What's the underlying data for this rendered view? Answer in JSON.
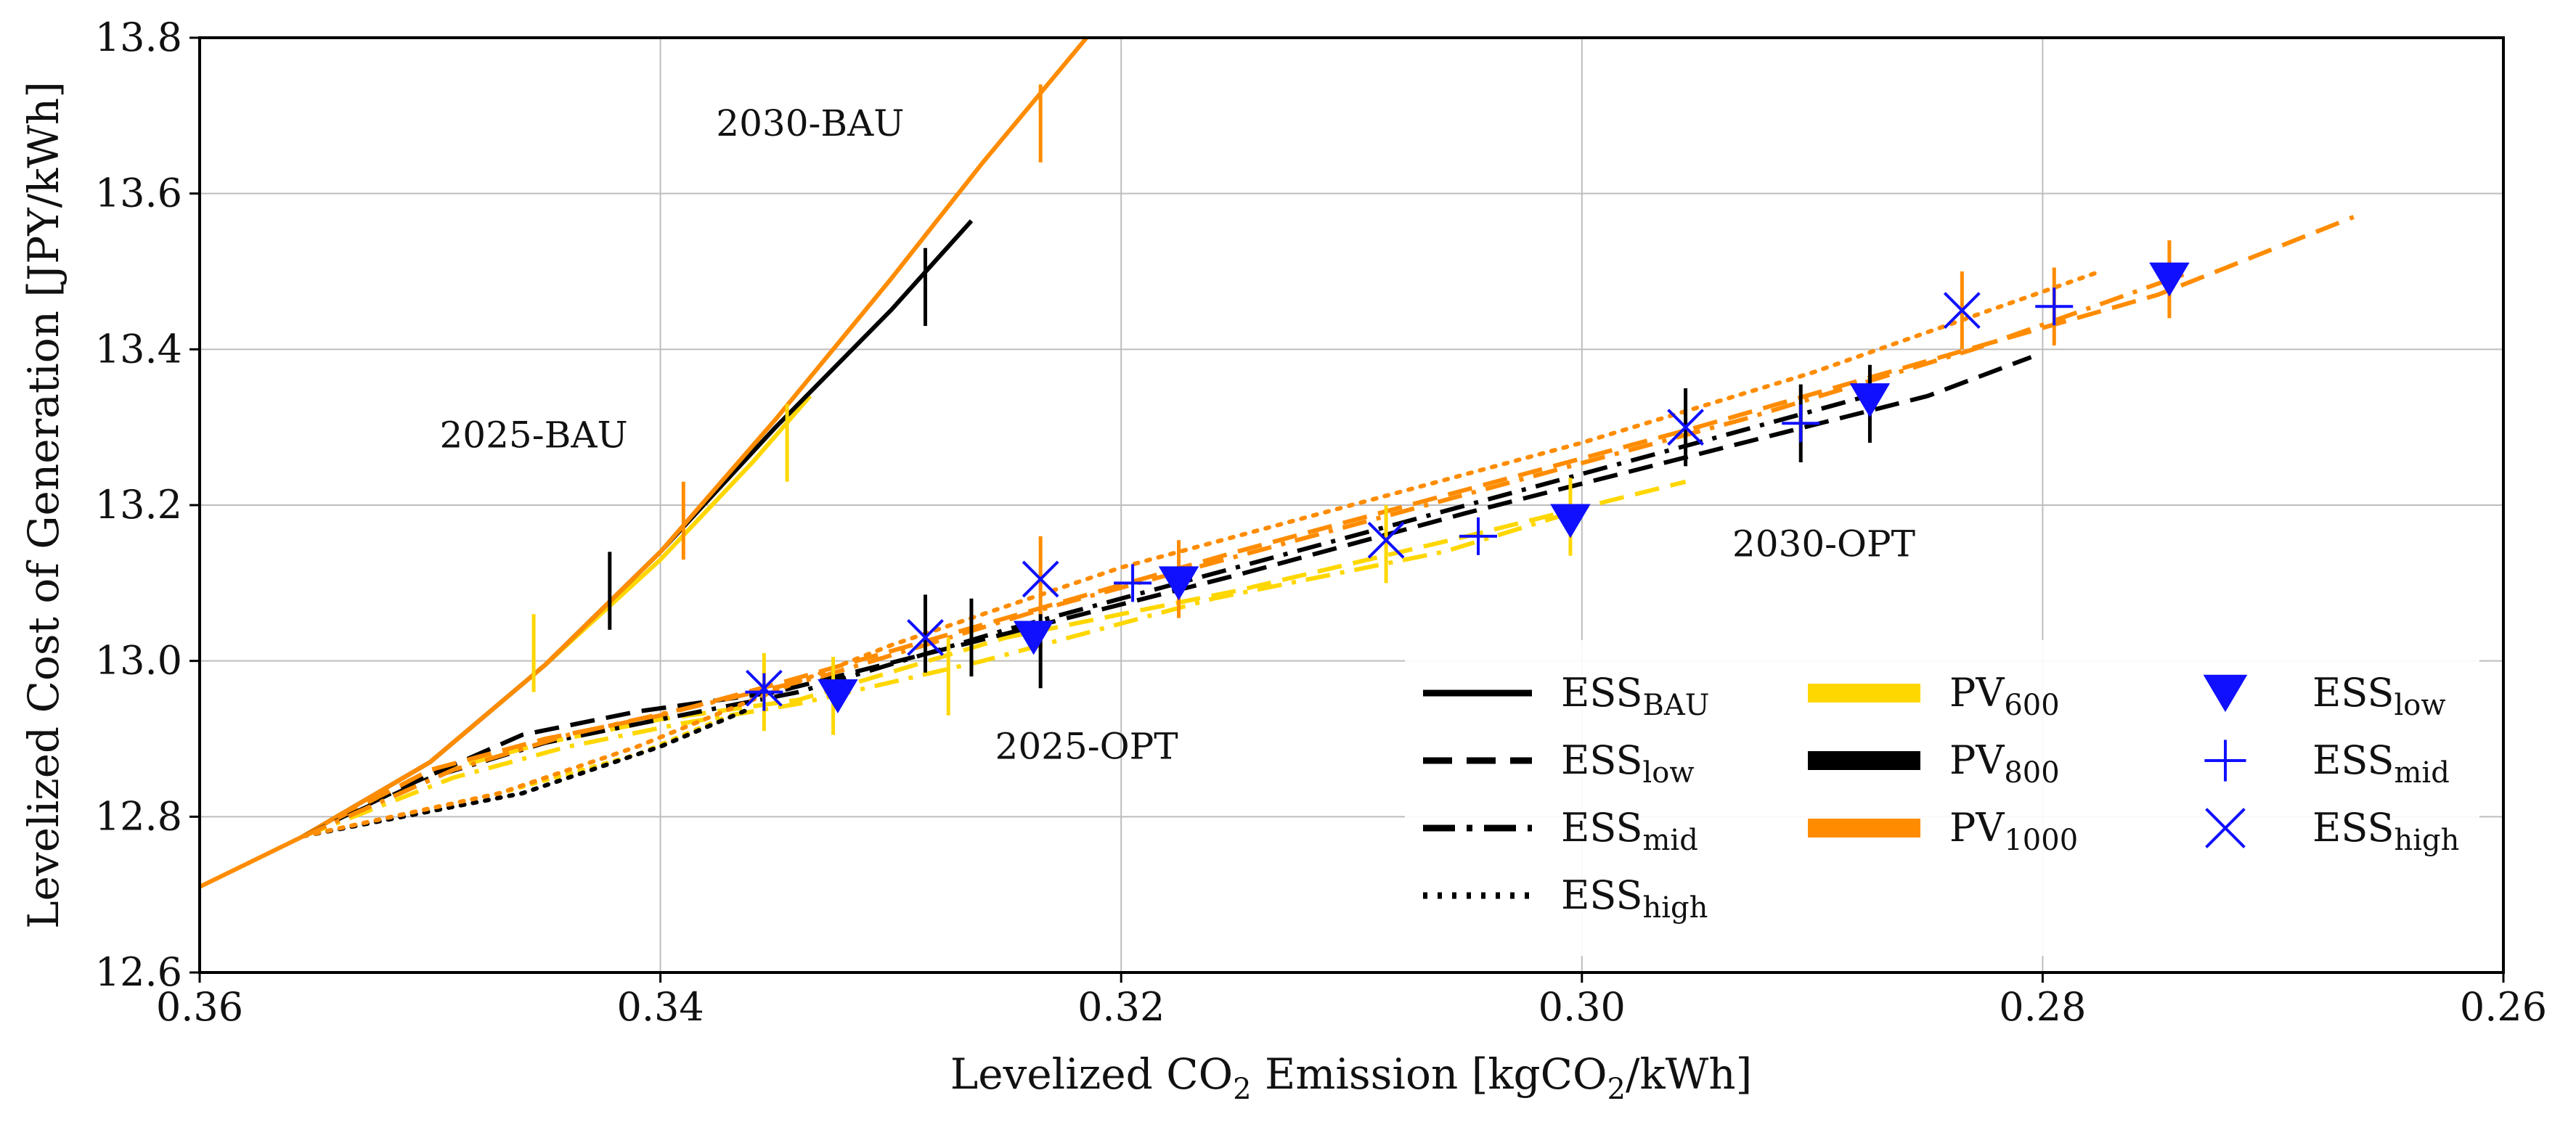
{
  "chart_data": {
    "type": "line",
    "title": "",
    "xlabel": {
      "pre": "Levelized CO",
      "sub": "2",
      "post": " Emission [kgCO",
      "sub2": "2",
      "post2": "/kWh]"
    },
    "ylabel": "Levelized Cost of Generation [JPY/kWh]",
    "xlim": [
      0.36,
      0.26
    ],
    "ylim": [
      12.6,
      13.8
    ],
    "xticks": [
      0.36,
      0.34,
      0.32,
      0.3,
      0.28,
      0.26
    ],
    "xtick_labels": [
      "0.36",
      "0.34",
      "0.32",
      "0.30",
      "0.28",
      "0.26"
    ],
    "yticks": [
      12.6,
      12.8,
      13.0,
      13.2,
      13.4,
      13.6,
      13.8
    ],
    "ytick_labels": [
      "12.6",
      "12.8",
      "13.0",
      "13.2",
      "13.4",
      "13.6",
      "13.8"
    ],
    "grid": true,
    "legend_position": "bottom-right",
    "colors": {
      "pv600": "#ffd700",
      "pv800": "#000000",
      "pv1000": "#ff8c00",
      "marker": "#1010ff"
    },
    "annotations": [
      {
        "text": "2030-BAU",
        "x": 0.3335,
        "y": 13.69
      },
      {
        "text": "2025-BAU",
        "x": 0.3455,
        "y": 13.29
      },
      {
        "text": "2030-OPT",
        "x": 0.2895,
        "y": 13.15
      },
      {
        "text": "2025-OPT",
        "x": 0.3215,
        "y": 12.89
      }
    ],
    "series": [
      {
        "name": "BAU PV600",
        "pv": "pv600",
        "ess": "bau",
        "points": [
          [
            0.3555,
            12.775
          ],
          [
            0.35,
            12.87
          ],
          [
            0.345,
            12.995
          ],
          [
            0.34,
            13.13
          ],
          [
            0.336,
            13.255
          ],
          [
            0.3335,
            13.34
          ]
        ]
      },
      {
        "name": "BAU PV800",
        "pv": "pv800",
        "ess": "bau",
        "points": [
          [
            0.3555,
            12.775
          ],
          [
            0.35,
            12.87
          ],
          [
            0.345,
            12.995
          ],
          [
            0.34,
            13.14
          ],
          [
            0.335,
            13.3
          ],
          [
            0.33,
            13.45
          ],
          [
            0.3265,
            13.565
          ]
        ]
      },
      {
        "name": "BAU PV1000",
        "pv": "pv1000",
        "ess": "bau",
        "points": [
          [
            0.36,
            12.71
          ],
          [
            0.3555,
            12.775
          ],
          [
            0.35,
            12.87
          ],
          [
            0.345,
            12.995
          ],
          [
            0.34,
            13.14
          ],
          [
            0.335,
            13.31
          ],
          [
            0.33,
            13.49
          ],
          [
            0.326,
            13.64
          ],
          [
            0.3215,
            13.8
          ]
        ]
      },
      {
        "name": "PV600 ESS low",
        "pv": "pv600",
        "ess": "low",
        "points": [
          [
            0.3555,
            12.775
          ],
          [
            0.35,
            12.855
          ],
          [
            0.345,
            12.895
          ],
          [
            0.34,
            12.925
          ],
          [
            0.334,
            12.95
          ],
          [
            0.325,
            13.03
          ],
          [
            0.315,
            13.09
          ],
          [
            0.305,
            13.16
          ],
          [
            0.2955,
            13.23
          ]
        ]
      },
      {
        "name": "PV800 ESS low",
        "pv": "pv800",
        "ess": "low",
        "points": [
          [
            0.3555,
            12.775
          ],
          [
            0.351,
            12.84
          ],
          [
            0.346,
            12.905
          ],
          [
            0.341,
            12.935
          ],
          [
            0.335,
            12.96
          ],
          [
            0.325,
            13.035
          ],
          [
            0.315,
            13.11
          ],
          [
            0.305,
            13.19
          ],
          [
            0.295,
            13.265
          ],
          [
            0.285,
            13.34
          ],
          [
            0.2805,
            13.39
          ]
        ]
      },
      {
        "name": "PV1000 ESS low",
        "pv": "pv1000",
        "ess": "low",
        "points": [
          [
            0.3555,
            12.775
          ],
          [
            0.35,
            12.86
          ],
          [
            0.345,
            12.9
          ],
          [
            0.34,
            12.93
          ],
          [
            0.335,
            12.97
          ],
          [
            0.325,
            13.055
          ],
          [
            0.315,
            13.14
          ],
          [
            0.305,
            13.22
          ],
          [
            0.295,
            13.3
          ],
          [
            0.285,
            13.385
          ],
          [
            0.275,
            13.47
          ],
          [
            0.2665,
            13.57
          ]
        ]
      },
      {
        "name": "PV600 ESS mid",
        "pv": "pv600",
        "ess": "mid",
        "points": [
          [
            0.3555,
            12.775
          ],
          [
            0.349,
            12.85
          ],
          [
            0.344,
            12.89
          ],
          [
            0.339,
            12.92
          ],
          [
            0.334,
            12.945
          ],
          [
            0.326,
            13.0
          ],
          [
            0.316,
            13.08
          ],
          [
            0.306,
            13.14
          ],
          [
            0.3005,
            13.19
          ]
        ]
      },
      {
        "name": "PV800 ESS mid",
        "pv": "pv800",
        "ess": "mid",
        "points": [
          [
            0.3555,
            12.775
          ],
          [
            0.35,
            12.85
          ],
          [
            0.345,
            12.895
          ],
          [
            0.34,
            12.925
          ],
          [
            0.334,
            12.96
          ],
          [
            0.325,
            13.04
          ],
          [
            0.315,
            13.12
          ],
          [
            0.305,
            13.2
          ],
          [
            0.295,
            13.28
          ],
          [
            0.287,
            13.345
          ]
        ]
      },
      {
        "name": "PV1000 ESS mid",
        "pv": "pv1000",
        "ess": "mid",
        "points": [
          [
            0.3555,
            12.775
          ],
          [
            0.349,
            12.86
          ],
          [
            0.344,
            12.905
          ],
          [
            0.338,
            12.945
          ],
          [
            0.333,
            12.98
          ],
          [
            0.323,
            13.07
          ],
          [
            0.313,
            13.15
          ],
          [
            0.303,
            13.23
          ],
          [
            0.293,
            13.31
          ],
          [
            0.283,
            13.4
          ],
          [
            0.2735,
            13.5
          ]
        ]
      },
      {
        "name": "PV600 ESS high",
        "pv": "pv600",
        "ess": "high",
        "points": [
          [
            0.3555,
            12.775
          ],
          [
            0.347,
            12.83
          ],
          [
            0.341,
            12.88
          ],
          [
            0.337,
            12.93
          ]
        ]
      },
      {
        "name": "PV800 ESS high",
        "pv": "pv800",
        "ess": "high",
        "points": [
          [
            0.3555,
            12.775
          ],
          [
            0.346,
            12.83
          ],
          [
            0.34,
            12.89
          ],
          [
            0.336,
            12.94
          ]
        ]
      },
      {
        "name": "PV1000 ESS high",
        "pv": "pv1000",
        "ess": "high",
        "points": [
          [
            0.3555,
            12.775
          ],
          [
            0.347,
            12.83
          ],
          [
            0.341,
            12.89
          ],
          [
            0.336,
            12.95
          ],
          [
            0.33,
            13.02
          ],
          [
            0.32,
            13.12
          ],
          [
            0.31,
            13.2
          ],
          [
            0.3,
            13.28
          ],
          [
            0.29,
            13.37
          ],
          [
            0.2775,
            13.5
          ]
        ]
      }
    ],
    "error_bars": [
      {
        "x": 0.3455,
        "y": 13.01,
        "err": 0.05,
        "color": "pv600"
      },
      {
        "x": 0.3345,
        "y": 13.28,
        "err": 0.05,
        "color": "pv600"
      },
      {
        "x": 0.3355,
        "y": 12.96,
        "err": 0.05,
        "color": "pv600"
      },
      {
        "x": 0.3325,
        "y": 12.955,
        "err": 0.05,
        "color": "pv600"
      },
      {
        "x": 0.3275,
        "y": 12.98,
        "err": 0.05,
        "color": "pv600"
      },
      {
        "x": 0.3085,
        "y": 13.15,
        "err": 0.05,
        "color": "pv600"
      },
      {
        "x": 0.3005,
        "y": 13.185,
        "err": 0.05,
        "color": "pv600"
      },
      {
        "x": 0.3422,
        "y": 13.09,
        "err": 0.05,
        "color": "pv800"
      },
      {
        "x": 0.3285,
        "y": 13.48,
        "err": 0.05,
        "color": "pv800"
      },
      {
        "x": 0.3285,
        "y": 13.035,
        "err": 0.05,
        "color": "pv800"
      },
      {
        "x": 0.3265,
        "y": 13.03,
        "err": 0.05,
        "color": "pv800"
      },
      {
        "x": 0.3235,
        "y": 13.015,
        "err": 0.05,
        "color": "pv800"
      },
      {
        "x": 0.2955,
        "y": 13.3,
        "err": 0.05,
        "color": "pv800"
      },
      {
        "x": 0.2905,
        "y": 13.305,
        "err": 0.05,
        "color": "pv800"
      },
      {
        "x": 0.2875,
        "y": 13.33,
        "err": 0.05,
        "color": "pv800"
      },
      {
        "x": 0.339,
        "y": 13.18,
        "err": 0.05,
        "color": "pv1000"
      },
      {
        "x": 0.3235,
        "y": 13.69,
        "err": 0.05,
        "color": "pv1000"
      },
      {
        "x": 0.3235,
        "y": 13.11,
        "err": 0.05,
        "color": "pv1000"
      },
      {
        "x": 0.3175,
        "y": 13.105,
        "err": 0.05,
        "color": "pv1000"
      },
      {
        "x": 0.2835,
        "y": 13.45,
        "err": 0.05,
        "color": "pv1000"
      },
      {
        "x": 0.2795,
        "y": 13.455,
        "err": 0.05,
        "color": "pv1000"
      },
      {
        "x": 0.2745,
        "y": 13.49,
        "err": 0.05,
        "color": "pv1000"
      }
    ],
    "markers": [
      {
        "x": 0.3323,
        "y": 12.955,
        "type": "low"
      },
      {
        "x": 0.3238,
        "y": 13.03,
        "type": "low"
      },
      {
        "x": 0.3175,
        "y": 13.1,
        "type": "low"
      },
      {
        "x": 0.3005,
        "y": 13.18,
        "type": "low"
      },
      {
        "x": 0.2875,
        "y": 13.335,
        "type": "low"
      },
      {
        "x": 0.2745,
        "y": 13.49,
        "type": "low"
      },
      {
        "x": 0.3355,
        "y": 12.96,
        "type": "mid"
      },
      {
        "x": 0.3195,
        "y": 13.1,
        "type": "mid"
      },
      {
        "x": 0.3045,
        "y": 13.16,
        "type": "mid"
      },
      {
        "x": 0.2905,
        "y": 13.305,
        "type": "mid"
      },
      {
        "x": 0.2795,
        "y": 13.455,
        "type": "mid"
      },
      {
        "x": 0.3355,
        "y": 12.965,
        "type": "high"
      },
      {
        "x": 0.3285,
        "y": 13.03,
        "type": "high"
      },
      {
        "x": 0.3235,
        "y": 13.105,
        "type": "high"
      },
      {
        "x": 0.3085,
        "y": 13.155,
        "type": "high"
      },
      {
        "x": 0.2955,
        "y": 13.3,
        "type": "high"
      },
      {
        "x": 0.2835,
        "y": 13.45,
        "type": "high"
      }
    ],
    "legend": {
      "linestyles": [
        {
          "base": "ESS",
          "sub": "BAU",
          "dash": "solid"
        },
        {
          "base": "ESS",
          "sub": "low",
          "dash": "dashed"
        },
        {
          "base": "ESS",
          "sub": "mid",
          "dash": "dashdot"
        },
        {
          "base": "ESS",
          "sub": "high",
          "dash": "dotted"
        }
      ],
      "colors": [
        {
          "base": "PV",
          "sub": "600",
          "color": "pv600"
        },
        {
          "base": "PV",
          "sub": "800",
          "color": "pv800"
        },
        {
          "base": "PV",
          "sub": "1000",
          "color": "pv1000"
        }
      ],
      "markers": [
        {
          "base": "ESS",
          "sub": "low",
          "marker": "low"
        },
        {
          "base": "ESS",
          "sub": "mid",
          "marker": "mid"
        },
        {
          "base": "ESS",
          "sub": "high",
          "marker": "high"
        }
      ]
    }
  }
}
